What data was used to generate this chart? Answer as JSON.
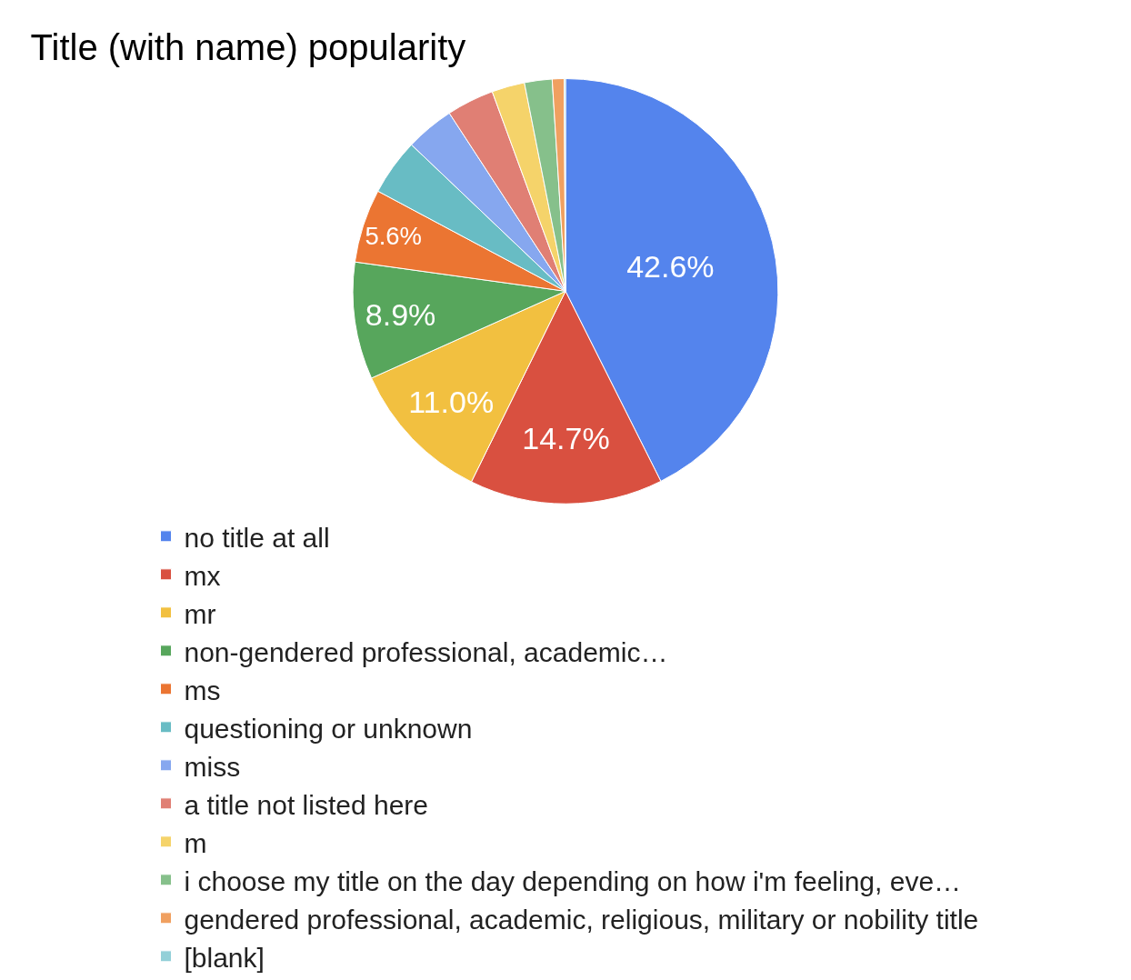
{
  "chart_data": {
    "type": "pie",
    "title": "Title (with name) popularity",
    "categories": [
      "no title at all",
      "mx",
      "mr",
      "non-gendered professional, academic…",
      "ms",
      "questioning or unknown",
      "miss",
      "a title not listed here",
      "m",
      "i choose my title on the day depending on how i'm feeling, eve…",
      "gendered professional, academic, religious, military or nobility title",
      "[blank]"
    ],
    "values": [
      42.6,
      14.7,
      11.0,
      8.9,
      5.6,
      4.3,
      3.7,
      3.6,
      2.5,
      2.1,
      0.9,
      0.1
    ],
    "value_labels": [
      "42.6%",
      "14.7%",
      "11.0%",
      "8.9%",
      "5.6%",
      null,
      null,
      null,
      null,
      null,
      null,
      null
    ],
    "colors": [
      "#5484ed",
      "#d95040",
      "#f2c040",
      "#57a65c",
      "#eb7532",
      "#68bcc4",
      "#86a7ef",
      "#e07f74",
      "#f5d36a",
      "#86c08b",
      "#f0a060",
      "#93d0d8"
    ],
    "legend": "bottom"
  }
}
